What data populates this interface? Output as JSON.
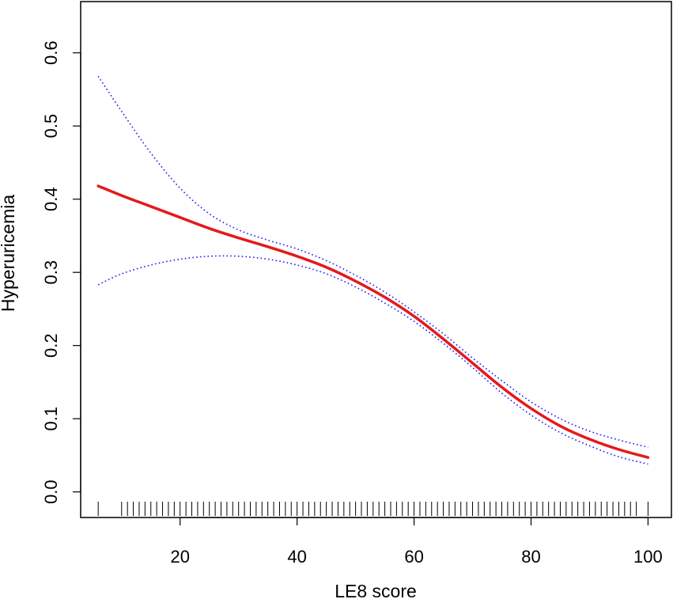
{
  "chart_data": {
    "type": "line",
    "title": "",
    "xlabel": "LE8 score",
    "ylabel": "Hyperuricemia",
    "xlim": [
      3,
      104
    ],
    "ylim": [
      -0.035,
      0.67
    ],
    "x_ticks": [
      20,
      40,
      60,
      80,
      100
    ],
    "x_tick_labels": [
      "20",
      "40",
      "60",
      "80",
      "100"
    ],
    "y_ticks": [
      0.0,
      0.1,
      0.2,
      0.3,
      0.4,
      0.5,
      0.6
    ],
    "y_tick_labels": [
      "0.0",
      "0.1",
      "0.2",
      "0.3",
      "0.4",
      "0.5",
      "0.6"
    ],
    "grid": false,
    "legend": "none",
    "colors": {
      "fit": "#e31a1c",
      "ci": "#1a1aff",
      "frame": "#000000",
      "rug": "#000000"
    },
    "series": [
      {
        "style": "solid",
        "x": [
          6,
          10,
          15,
          20,
          25,
          30,
          35,
          40,
          45,
          50,
          55,
          60,
          65,
          70,
          75,
          80,
          85,
          90,
          95,
          100
        ],
        "values": [
          0.418,
          0.405,
          0.39,
          0.375,
          0.36,
          0.347,
          0.335,
          0.322,
          0.307,
          0.288,
          0.266,
          0.24,
          0.209,
          0.176,
          0.143,
          0.114,
          0.09,
          0.072,
          0.058,
          0.047
        ]
      },
      {
        "style": "dotted",
        "x": [
          6,
          10,
          15,
          20,
          25,
          30,
          35,
          40,
          45,
          50,
          55,
          60,
          65,
          70,
          75,
          80,
          85,
          90,
          95,
          100
        ],
        "values": [
          0.568,
          0.52,
          0.463,
          0.415,
          0.38,
          0.358,
          0.344,
          0.332,
          0.316,
          0.296,
          0.273,
          0.246,
          0.216,
          0.183,
          0.152,
          0.123,
          0.1,
          0.083,
          0.071,
          0.061
        ]
      },
      {
        "style": "dotted",
        "x": [
          6,
          10,
          15,
          20,
          25,
          30,
          35,
          40,
          45,
          50,
          55,
          60,
          65,
          70,
          75,
          80,
          85,
          90,
          95,
          100
        ],
        "values": [
          0.283,
          0.298,
          0.31,
          0.318,
          0.322,
          0.322,
          0.318,
          0.31,
          0.298,
          0.28,
          0.258,
          0.233,
          0.203,
          0.17,
          0.135,
          0.105,
          0.081,
          0.063,
          0.048,
          0.038
        ]
      }
    ],
    "rug": [
      6,
      10,
      11,
      12,
      13,
      14,
      15,
      16,
      17,
      18,
      19,
      20,
      21,
      22,
      23,
      24,
      25,
      26,
      27,
      28,
      29,
      30,
      31,
      32,
      33,
      34,
      35,
      36,
      37,
      38,
      39,
      40,
      41,
      42,
      43,
      44,
      45,
      46,
      47,
      48,
      49,
      50,
      51,
      52,
      53,
      54,
      55,
      56,
      57,
      58,
      59,
      60,
      61,
      62,
      63,
      64,
      65,
      66,
      67,
      68,
      69,
      70,
      71,
      72,
      73,
      74,
      75,
      76,
      77,
      78,
      79,
      80,
      81,
      82,
      83,
      84,
      85,
      86,
      87,
      88,
      89,
      90,
      91,
      92,
      93,
      94,
      95,
      96,
      97,
      98,
      100
    ]
  }
}
